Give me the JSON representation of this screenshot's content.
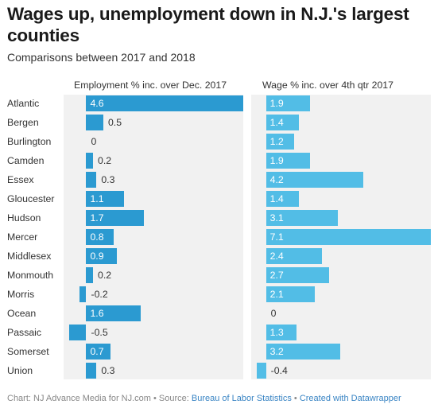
{
  "title": "Wages up, unemployment down in N.J.'s largest counties",
  "subtitle": "Comparisons between 2017 and 2018",
  "footer": {
    "prefix": "Chart: NJ Advance Media for NJ.com • Source: ",
    "source_link": "Bureau of Labor Statistics",
    "separator": " • ",
    "created_link": "Created with Datawrapper"
  },
  "colors": {
    "employment_bar": "#2b9ad1",
    "wage_bar": "#52bde6",
    "panel_bg": "#f1f1f1",
    "label_inside": "#ffffff",
    "label_outside": "#333333"
  },
  "chart_data": {
    "type": "bar",
    "orientation": "horizontal",
    "categories": [
      "Atlantic",
      "Bergen",
      "Burlington",
      "Camden",
      "Essex",
      "Gloucester",
      "Hudson",
      "Mercer",
      "Middlesex",
      "Monmouth",
      "Morris",
      "Ocean",
      "Passaic",
      "Somerset",
      "Union"
    ],
    "series": [
      {
        "name": "Employment % inc. over Dec. 2017",
        "values": [
          4.6,
          0.5,
          0,
          0.2,
          0.3,
          1.1,
          1.7,
          0.8,
          0.9,
          0.2,
          -0.2,
          1.6,
          -0.5,
          0.7,
          0.3
        ],
        "labels": [
          "4.6",
          "0.5",
          "0",
          "0.2",
          "0.3",
          "1.1",
          "1.7",
          "0.8",
          "0.9",
          "0.2",
          "-0.2",
          "1.6",
          "-0.5",
          "0.7",
          "0.3"
        ],
        "xlim": [
          -0.5,
          4.6
        ]
      },
      {
        "name": "Wage % inc. over 4th qtr 2017",
        "values": [
          1.9,
          1.4,
          1.2,
          1.9,
          4.2,
          1.4,
          3.1,
          7.1,
          2.4,
          2.7,
          2.1,
          0,
          1.3,
          3.2,
          -0.4
        ],
        "labels": [
          "1.9",
          "1.4",
          "1.2",
          "1.9",
          "4.2",
          "1.4",
          "3.1",
          "7.1",
          "2.4",
          "2.7",
          "2.1",
          "0",
          "1.3",
          "3.2",
          "-0.4"
        ],
        "xlim": [
          -0.4,
          7.1
        ]
      }
    ],
    "grid": false,
    "legend": "none"
  }
}
